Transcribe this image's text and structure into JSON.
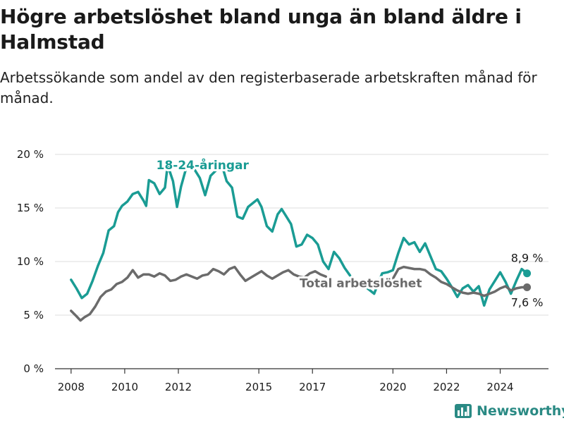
{
  "title": "Högre arbetslöshet bland unga än bland äldre i Halmstad",
  "subtitle": "Arbetssökande som andel av den registerbaserade arbetskraften månad för månad.",
  "brand": {
    "name": "Newsworthy"
  },
  "colors": {
    "youth": "#1a9c94",
    "total": "#6b6b6b",
    "grid": "#dcdcdc",
    "axis": "#333333",
    "text": "#1a1a1a"
  },
  "chart_data": {
    "type": "line",
    "title": "Högre arbetslöshet bland unga än bland äldre i Halmstad",
    "subtitle": "Arbetssökande som andel av den registerbaserade arbetskraften månad för månad.",
    "xlabel": "",
    "ylabel": "",
    "xlim": [
      2007.4,
      2025.8
    ],
    "ylim": [
      0,
      20
    ],
    "grid": true,
    "x_tick_labels": [
      "2008",
      "2010",
      "2012",
      "2015",
      "2017",
      "2020",
      "2022",
      "2024"
    ],
    "x_tick_values": [
      2008,
      2010,
      2012,
      2015,
      2017,
      2020,
      2022,
      2024
    ],
    "y_tick_labels": [
      "0 %",
      "5 %",
      "10 %",
      "15 %",
      "20 %"
    ],
    "y_tick_values": [
      0,
      5,
      10,
      15,
      20
    ],
    "series": [
      {
        "name": "18-24-åringar",
        "color": "#1a9c94",
        "end_label": "8,9 %",
        "points": [
          [
            2008.0,
            8.3
          ],
          [
            2008.2,
            7.5
          ],
          [
            2008.4,
            6.6
          ],
          [
            2008.6,
            7.0
          ],
          [
            2008.8,
            8.2
          ],
          [
            2009.0,
            9.6
          ],
          [
            2009.2,
            10.8
          ],
          [
            2009.4,
            12.9
          ],
          [
            2009.6,
            13.3
          ],
          [
            2009.75,
            14.6
          ],
          [
            2009.9,
            15.2
          ],
          [
            2010.1,
            15.6
          ],
          [
            2010.3,
            16.3
          ],
          [
            2010.5,
            16.5
          ],
          [
            2010.7,
            15.7
          ],
          [
            2010.8,
            15.2
          ],
          [
            2010.9,
            17.6
          ],
          [
            2011.1,
            17.3
          ],
          [
            2011.3,
            16.3
          ],
          [
            2011.5,
            16.9
          ],
          [
            2011.6,
            19.0
          ],
          [
            2011.8,
            17.5
          ],
          [
            2011.95,
            15.1
          ],
          [
            2012.1,
            17.0
          ],
          [
            2012.3,
            18.8
          ],
          [
            2012.5,
            19.0
          ],
          [
            2012.8,
            17.8
          ],
          [
            2013.0,
            16.2
          ],
          [
            2013.2,
            18.0
          ],
          [
            2013.4,
            18.5
          ],
          [
            2013.6,
            19.2
          ],
          [
            2013.8,
            17.5
          ],
          [
            2014.0,
            16.9
          ],
          [
            2014.2,
            14.2
          ],
          [
            2014.4,
            14.0
          ],
          [
            2014.6,
            15.1
          ],
          [
            2014.8,
            15.5
          ],
          [
            2014.95,
            15.8
          ],
          [
            2015.1,
            15.1
          ],
          [
            2015.3,
            13.3
          ],
          [
            2015.5,
            12.8
          ],
          [
            2015.7,
            14.4
          ],
          [
            2015.85,
            14.9
          ],
          [
            2016.0,
            14.3
          ],
          [
            2016.2,
            13.5
          ],
          [
            2016.4,
            11.4
          ],
          [
            2016.6,
            11.6
          ],
          [
            2016.8,
            12.5
          ],
          [
            2017.0,
            12.2
          ],
          [
            2017.2,
            11.6
          ],
          [
            2017.4,
            10.0
          ],
          [
            2017.6,
            9.3
          ],
          [
            2017.8,
            10.9
          ],
          [
            2018.0,
            10.3
          ],
          [
            2018.2,
            9.4
          ],
          [
            2018.4,
            8.7
          ],
          [
            2019.0,
            7.6
          ],
          [
            2019.3,
            7.0
          ],
          [
            2019.6,
            8.9
          ],
          [
            2019.8,
            9.0
          ],
          [
            2020.0,
            9.2
          ],
          [
            2020.2,
            10.8
          ],
          [
            2020.4,
            12.2
          ],
          [
            2020.6,
            11.6
          ],
          [
            2020.8,
            11.8
          ],
          [
            2021.0,
            10.9
          ],
          [
            2021.2,
            11.7
          ],
          [
            2021.4,
            10.5
          ],
          [
            2021.6,
            9.3
          ],
          [
            2021.8,
            9.1
          ],
          [
            2022.0,
            8.4
          ],
          [
            2022.2,
            7.6
          ],
          [
            2022.4,
            6.7
          ],
          [
            2022.6,
            7.5
          ],
          [
            2022.8,
            7.8
          ],
          [
            2023.0,
            7.2
          ],
          [
            2023.2,
            7.7
          ],
          [
            2023.4,
            5.9
          ],
          [
            2023.6,
            7.4
          ],
          [
            2023.8,
            8.2
          ],
          [
            2024.0,
            9.0
          ],
          [
            2024.2,
            8.1
          ],
          [
            2024.4,
            7.0
          ],
          [
            2024.6,
            8.2
          ],
          [
            2024.8,
            9.3
          ],
          [
            2025.0,
            8.9
          ]
        ]
      },
      {
        "name": "Total arbetslöshet",
        "color": "#6b6b6b",
        "end_label": "7,6 %",
        "points": [
          [
            2008.0,
            5.4
          ],
          [
            2008.2,
            4.9
          ],
          [
            2008.35,
            4.5
          ],
          [
            2008.5,
            4.8
          ],
          [
            2008.7,
            5.1
          ],
          [
            2008.9,
            5.8
          ],
          [
            2009.1,
            6.7
          ],
          [
            2009.3,
            7.2
          ],
          [
            2009.5,
            7.4
          ],
          [
            2009.7,
            7.9
          ],
          [
            2009.9,
            8.1
          ],
          [
            2010.1,
            8.5
          ],
          [
            2010.3,
            9.2
          ],
          [
            2010.5,
            8.5
          ],
          [
            2010.7,
            8.8
          ],
          [
            2010.9,
            8.8
          ],
          [
            2011.1,
            8.6
          ],
          [
            2011.3,
            8.9
          ],
          [
            2011.5,
            8.7
          ],
          [
            2011.7,
            8.2
          ],
          [
            2011.9,
            8.3
          ],
          [
            2012.1,
            8.6
          ],
          [
            2012.3,
            8.8
          ],
          [
            2012.5,
            8.6
          ],
          [
            2012.7,
            8.4
          ],
          [
            2012.9,
            8.7
          ],
          [
            2013.1,
            8.8
          ],
          [
            2013.3,
            9.3
          ],
          [
            2013.5,
            9.1
          ],
          [
            2013.7,
            8.8
          ],
          [
            2013.9,
            9.3
          ],
          [
            2014.1,
            9.5
          ],
          [
            2014.3,
            8.8
          ],
          [
            2014.5,
            8.2
          ],
          [
            2014.7,
            8.5
          ],
          [
            2014.9,
            8.8
          ],
          [
            2015.1,
            9.1
          ],
          [
            2015.3,
            8.7
          ],
          [
            2015.5,
            8.4
          ],
          [
            2015.7,
            8.7
          ],
          [
            2015.9,
            9.0
          ],
          [
            2016.1,
            9.2
          ],
          [
            2016.3,
            8.8
          ],
          [
            2016.5,
            8.6
          ],
          [
            2016.7,
            8.5
          ],
          [
            2016.9,
            8.9
          ],
          [
            2017.1,
            9.1
          ],
          [
            2017.3,
            8.8
          ],
          [
            2017.5,
            8.6
          ],
          [
            2020.0,
            8.4
          ],
          [
            2020.2,
            9.3
          ],
          [
            2020.4,
            9.5
          ],
          [
            2020.6,
            9.4
          ],
          [
            2020.8,
            9.3
          ],
          [
            2021.0,
            9.3
          ],
          [
            2021.2,
            9.2
          ],
          [
            2021.4,
            8.8
          ],
          [
            2021.6,
            8.5
          ],
          [
            2021.8,
            8.1
          ],
          [
            2022.0,
            7.9
          ],
          [
            2022.2,
            7.6
          ],
          [
            2022.4,
            7.3
          ],
          [
            2022.6,
            7.1
          ],
          [
            2022.8,
            7.0
          ],
          [
            2023.0,
            7.1
          ],
          [
            2023.2,
            7.0
          ],
          [
            2023.4,
            6.8
          ],
          [
            2023.6,
            7.0
          ],
          [
            2023.8,
            7.2
          ],
          [
            2024.0,
            7.5
          ],
          [
            2024.2,
            7.7
          ],
          [
            2024.4,
            7.3
          ],
          [
            2024.6,
            7.5
          ],
          [
            2024.8,
            7.6
          ],
          [
            2025.0,
            7.6
          ]
        ]
      }
    ],
    "annotations": [
      {
        "text": "18-24-åringar",
        "series": "18-24-åringar",
        "x": 2012.9,
        "y": 19.0
      },
      {
        "text": "Total arbetslöshet",
        "series": "Total arbetslöshet",
        "x": 2018.8,
        "y": 8.0
      }
    ]
  }
}
